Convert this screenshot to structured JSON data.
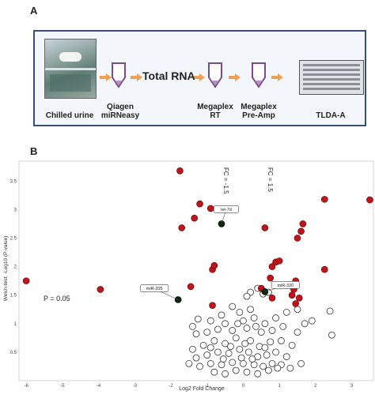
{
  "panel_a": {
    "letter": "A",
    "steps": {
      "chilled_urine": "Chilled urine",
      "qiagen_line1": "Qiagen",
      "qiagen_line2": "miRNeasy",
      "total_rna": "Total RNA",
      "megaplex_rt_line1": "Megaplex",
      "megaplex_rt_line2": "RT",
      "megaplex_pa_line1": "Megaplex",
      "megaplex_pa_line2": "Pre-Amp",
      "tlda": "TLDA-A"
    },
    "colors": {
      "box_border": "#3b4e75",
      "arrow": "#f0a050",
      "tube_outline": "#7b4a8a"
    }
  },
  "panel_b": {
    "letter": "B",
    "p_label": "P = 0.05",
    "fc_neg_label": "FC = -1.5",
    "fc_pos_label": "FC = 1.5"
  },
  "chart_data": {
    "type": "scatter",
    "xlabel": "Log2 Fold Change",
    "ylabel": "Welch-test: -Log10 (P-value)",
    "xlim": [
      -6.2,
      3.6
    ],
    "ylim": [
      0,
      3.85
    ],
    "xticks": [
      -6,
      -5,
      -4,
      -3,
      -2,
      -1,
      0,
      1,
      2,
      3
    ],
    "yticks": [
      0.5,
      1,
      1.5,
      2,
      2.5,
      3,
      3.5
    ],
    "grid": true,
    "threshold_y": 1.3,
    "threshold_x": [
      -0.58,
      0.58
    ],
    "colors": {
      "significant": "#c0141c",
      "labeled": "#0a2a0a",
      "nonsignificant": "#ffffff"
    },
    "annotations": [
      {
        "label": "let-7d",
        "x": -0.6,
        "y": 2.75
      },
      {
        "label": "miR-320",
        "x": 0.6,
        "y": 1.56
      },
      {
        "label": "miR-205",
        "x": -1.8,
        "y": 1.42
      }
    ],
    "significant_points": [
      [
        -6.0,
        1.75
      ],
      [
        -3.95,
        1.6
      ],
      [
        -1.75,
        3.68
      ],
      [
        -1.7,
        2.68
      ],
      [
        -1.35,
        2.85
      ],
      [
        -1.2,
        3.1
      ],
      [
        -0.9,
        3.02
      ],
      [
        -1.45,
        1.65
      ],
      [
        -0.85,
        1.95
      ],
      [
        -0.8,
        2.02
      ],
      [
        -0.85,
        1.32
      ],
      [
        0.6,
        2.68
      ],
      [
        0.8,
        2.0
      ],
      [
        0.9,
        2.08
      ],
      [
        1.0,
        2.1
      ],
      [
        1.5,
        2.5
      ],
      [
        1.6,
        2.62
      ],
      [
        1.65,
        2.75
      ],
      [
        2.25,
        3.18
      ],
      [
        3.5,
        3.17
      ],
      [
        2.25,
        1.95
      ],
      [
        1.45,
        1.75
      ],
      [
        1.4,
        1.6
      ],
      [
        1.35,
        1.5
      ],
      [
        1.55,
        1.45
      ],
      [
        1.45,
        1.35
      ],
      [
        0.75,
        1.8
      ],
      [
        0.8,
        1.45
      ],
      [
        0.5,
        1.62
      ]
    ],
    "labeled_points": [
      [
        -0.6,
        2.75
      ],
      [
        0.6,
        1.56
      ],
      [
        -1.8,
        1.42
      ]
    ],
    "nonsignificant_points": [
      [
        0.4,
        1.62
      ],
      [
        0.2,
        1.55
      ],
      [
        0.1,
        1.48
      ],
      [
        0.55,
        1.52
      ],
      [
        0.7,
        1.55
      ],
      [
        -0.3,
        1.3
      ],
      [
        -0.1,
        1.2
      ],
      [
        0.2,
        1.25
      ],
      [
        -0.6,
        1.15
      ],
      [
        -0.9,
        1.05
      ],
      [
        -1.25,
        1.08
      ],
      [
        -1.4,
        0.95
      ],
      [
        -0.5,
        1.0
      ],
      [
        0.0,
        1.05
      ],
      [
        0.3,
        1.1
      ],
      [
        0.6,
        1.0
      ],
      [
        0.9,
        1.1
      ],
      [
        1.2,
        1.2
      ],
      [
        1.5,
        1.25
      ],
      [
        1.7,
        1.0
      ],
      [
        1.9,
        1.05
      ],
      [
        -1.3,
        0.82
      ],
      [
        -1.0,
        0.85
      ],
      [
        -0.7,
        0.9
      ],
      [
        -0.3,
        0.88
      ],
      [
        0.1,
        0.92
      ],
      [
        0.5,
        0.85
      ],
      [
        0.8,
        0.88
      ],
      [
        1.1,
        0.95
      ],
      [
        1.5,
        0.85
      ],
      [
        -1.4,
        0.55
      ],
      [
        -1.1,
        0.62
      ],
      [
        -0.8,
        0.7
      ],
      [
        -0.5,
        0.65
      ],
      [
        -0.2,
        0.75
      ],
      [
        0.2,
        0.7
      ],
      [
        0.45,
        0.6
      ],
      [
        0.75,
        0.68
      ],
      [
        1.05,
        0.7
      ],
      [
        1.35,
        0.62
      ],
      [
        -1.3,
        0.4
      ],
      [
        -1.0,
        0.45
      ],
      [
        -0.7,
        0.5
      ],
      [
        -0.4,
        0.48
      ],
      [
        -0.1,
        0.55
      ],
      [
        0.15,
        0.5
      ],
      [
        0.4,
        0.42
      ],
      [
        0.65,
        0.45
      ],
      [
        0.9,
        0.5
      ],
      [
        1.2,
        0.42
      ],
      [
        -1.2,
        0.25
      ],
      [
        -0.9,
        0.3
      ],
      [
        -0.6,
        0.28
      ],
      [
        -0.3,
        0.32
      ],
      [
        0.0,
        0.3
      ],
      [
        0.3,
        0.28
      ],
      [
        0.55,
        0.25
      ],
      [
        0.8,
        0.3
      ],
      [
        1.05,
        0.28
      ],
      [
        1.3,
        0.22
      ],
      [
        -0.8,
        0.15
      ],
      [
        -0.5,
        0.12
      ],
      [
        -0.2,
        0.18
      ],
      [
        0.1,
        0.15
      ],
      [
        0.4,
        0.12
      ],
      [
        0.7,
        0.18
      ],
      [
        -0.35,
        0.6
      ],
      [
        0.05,
        0.65
      ],
      [
        -0.55,
        0.38
      ],
      [
        0.25,
        0.38
      ],
      [
        2.45,
        0.8
      ],
      [
        2.4,
        1.22
      ],
      [
        -0.15,
        1.0
      ],
      [
        0.35,
        0.95
      ],
      [
        -0.05,
        0.4
      ],
      [
        0.6,
        0.58
      ],
      [
        -0.9,
        0.58
      ],
      [
        1.6,
        0.3
      ],
      [
        -1.5,
        0.3
      ],
      [
        0.95,
        0.22
      ]
    ]
  }
}
